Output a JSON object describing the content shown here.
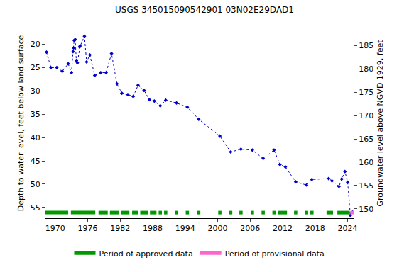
{
  "chart_data": {
    "type": "line",
    "title": "USGS 345015090542901 03N02E29DAD1",
    "y_label": "Depth to water level, feet below land surface",
    "y2_label": "Groundwater level above NGVD 1929, feet",
    "x": [
      1968.4,
      1969.2,
      1970.3,
      1971.3,
      1972.4,
      1973.0,
      1973.3,
      1973.4,
      1973.5,
      1973.7,
      1973.9,
      1974.1,
      1974.5,
      1974.6,
      1975.4,
      1975.8,
      1976.4,
      1977.3,
      1978.4,
      1979.4,
      1980.4,
      1981.4,
      1982.3,
      1983.4,
      1984.4,
      1985.3,
      1986.4,
      1987.4,
      1988.3,
      1989.4,
      1990.4,
      1992.4,
      1994.4,
      1996.5,
      2000.4,
      2002.4,
      2004.3,
      2006.4,
      2008.4,
      2010.4,
      2011.5,
      2012.5,
      2014.4,
      2016.4,
      2017.4,
      2020.5,
      2021.1,
      2022.4,
      2022.9,
      2023.5,
      2024.0,
      2024.5,
      2024.9
    ],
    "series": [
      {
        "color": "#0000cc",
        "marker": "diamond",
        "line_style": "dot",
        "values": [
          21.7,
          25.0,
          25.0,
          25.8,
          24.2,
          26.1,
          21.6,
          20.8,
          19.2,
          19.0,
          23.5,
          24.0,
          20.6,
          20.4,
          18.3,
          23.8,
          22.3,
          26.7,
          26.1,
          26.1,
          22.0,
          28.5,
          30.5,
          30.8,
          31.2,
          28.8,
          29.9,
          31.9,
          32.2,
          33.2,
          32.0,
          32.6,
          33.5,
          36.1,
          39.7,
          43.1,
          42.5,
          42.7,
          44.5,
          42.7,
          45.8,
          46.3,
          49.5,
          50.2,
          49.0,
          48.8,
          49.3,
          50.5,
          48.9,
          47.3,
          49.6,
          56.7,
          56.0
        ]
      }
    ],
    "periods": [
      {
        "name": "Period of approved data",
        "color": "#009900",
        "ranges": [
          [
            1968.2,
            1972.4
          ],
          [
            1972.9,
            1977.4
          ],
          [
            1978.0,
            1979.7
          ],
          [
            1980.1,
            1981.7
          ],
          [
            1982.1,
            1983.7
          ],
          [
            1984.2,
            1985.3
          ],
          [
            1985.7,
            1987.2
          ],
          [
            1987.5,
            1988.7
          ],
          [
            1989.1,
            1989.7
          ],
          [
            1990.1,
            1990.7
          ],
          [
            1992.1,
            1992.7
          ],
          [
            1994.1,
            1994.7
          ],
          [
            1996.2,
            1996.8
          ],
          [
            2000.1,
            2000.7
          ],
          [
            2002.1,
            2002.7
          ],
          [
            2004.0,
            2004.6
          ],
          [
            2006.1,
            2006.7
          ],
          [
            2008.1,
            2008.7
          ],
          [
            2010.1,
            2010.7
          ],
          [
            2011.2,
            2012.8
          ],
          [
            2014.1,
            2014.7
          ],
          [
            2016.1,
            2016.7
          ],
          [
            2017.1,
            2017.7
          ],
          [
            2020.1,
            2021.3
          ],
          [
            2022.1,
            2024.4
          ]
        ]
      },
      {
        "name": "Period of provisional data",
        "color": "#ff66cc",
        "ranges": [
          [
            2024.5,
            2025.1
          ]
        ]
      }
    ],
    "xlim": [
      1968.2,
      2025.1
    ],
    "xticks": [
      1970,
      1976,
      1982,
      1988,
      1994,
      2000,
      2006,
      2012,
      2018,
      2024
    ],
    "ylim": [
      57.3,
      16.6
    ],
    "yticks": [
      20,
      25,
      30,
      35,
      40,
      45,
      50,
      55
    ],
    "y2lim": [
      148.0,
      188.7
    ],
    "y2ticks": [
      150,
      155,
      160,
      165,
      170,
      175,
      180,
      185
    ],
    "grid": false,
    "legend": "bottom"
  }
}
